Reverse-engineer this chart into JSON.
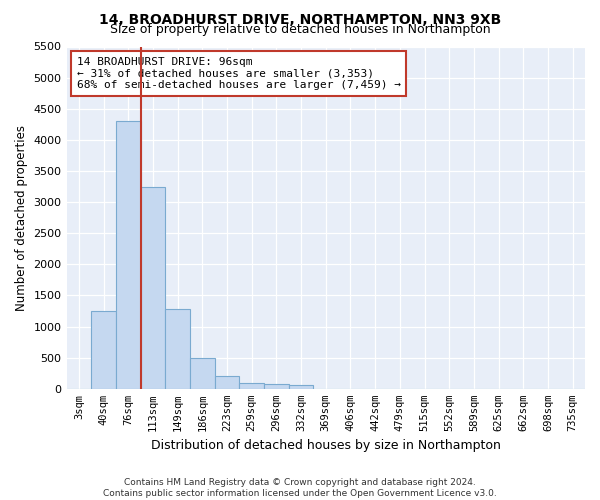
{
  "title": "14, BROADHURST DRIVE, NORTHAMPTON, NN3 9XB",
  "subtitle": "Size of property relative to detached houses in Northampton",
  "xlabel": "Distribution of detached houses by size in Northampton",
  "ylabel": "Number of detached properties",
  "footer_line1": "Contains HM Land Registry data © Crown copyright and database right 2024.",
  "footer_line2": "Contains public sector information licensed under the Open Government Licence v3.0.",
  "categories": [
    "3sqm",
    "40sqm",
    "76sqm",
    "113sqm",
    "149sqm",
    "186sqm",
    "223sqm",
    "259sqm",
    "296sqm",
    "332sqm",
    "369sqm",
    "406sqm",
    "442sqm",
    "479sqm",
    "515sqm",
    "552sqm",
    "589sqm",
    "625sqm",
    "662sqm",
    "698sqm",
    "735sqm"
  ],
  "bar_values": [
    0,
    1250,
    4300,
    3250,
    1280,
    490,
    200,
    100,
    75,
    60,
    0,
    0,
    0,
    0,
    0,
    0,
    0,
    0,
    0,
    0,
    0
  ],
  "bar_color": "#c5d8f0",
  "bar_edge_color": "#7aaad0",
  "vline_color": "#c0392b",
  "annotation_line1": "14 BROADHURST DRIVE: 96sqm",
  "annotation_line2": "← 31% of detached houses are smaller (3,353)",
  "annotation_line3": "68% of semi-detached houses are larger (7,459) →",
  "annotation_box_edge_color": "#c0392b",
  "ylim_max": 5500,
  "ytick_step": 500,
  "background_color": "#e8eef8",
  "title_fontsize": 10,
  "subtitle_fontsize": 9
}
